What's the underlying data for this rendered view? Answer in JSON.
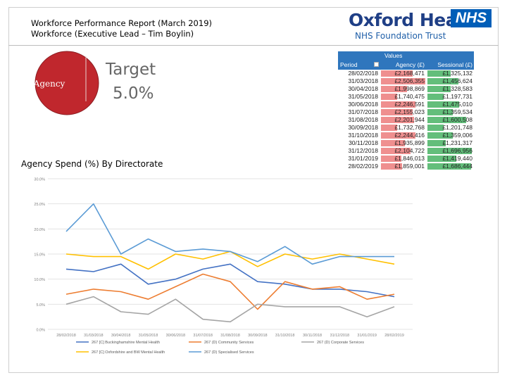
{
  "report": {
    "title_line1": "Workforce Performance Report (March 2019)",
    "title_line2": "Workforce (Executive Lead – Tim Boylin)"
  },
  "logo": {
    "name": "Oxford Health",
    "badge": "NHS",
    "subtitle": "NHS Foundation Trust",
    "badge_color": "#005eb8"
  },
  "indicator": {
    "label": "Agency",
    "target_label": "Target",
    "target_value": "5.0%",
    "color": "#c0272d"
  },
  "table": {
    "values_label": "Values",
    "headers": [
      "Period",
      "Agency (£)",
      "Sessional (£)"
    ],
    "rows": [
      {
        "period": "28/02/2018",
        "agency": "£2,168,471",
        "sessional": "£1,325,132"
      },
      {
        "period": "31/03/2018",
        "agency": "£2,506,355",
        "sessional": "£1,456,624"
      },
      {
        "period": "30/04/2018",
        "agency": "£1,998,869",
        "sessional": "£1,328,583"
      },
      {
        "period": "31/05/2018",
        "agency": "£1,740,475",
        "sessional": "£1,197,731"
      },
      {
        "period": "30/06/2018",
        "agency": "£2,246,591",
        "sessional": "£1,475,010"
      },
      {
        "period": "31/07/2018",
        "agency": "£2,155,023",
        "sessional": "£1,359,534"
      },
      {
        "period": "31/08/2018",
        "agency": "£2,201,944",
        "sessional": "£1,600,508"
      },
      {
        "period": "30/09/2018",
        "agency": "£1,732,768",
        "sessional": "£1,201,748"
      },
      {
        "period": "31/10/2018",
        "agency": "£2,244,416",
        "sessional": "£1,359,006"
      },
      {
        "period": "30/11/2018",
        "agency": "£1,935,899",
        "sessional": "£1,231,317"
      },
      {
        "period": "31/12/2018",
        "agency": "£2,104,722",
        "sessional": "£1,696,956"
      },
      {
        "period": "31/01/2019",
        "agency": "£1,846,013",
        "sessional": "£1,419,440"
      },
      {
        "period": "28/02/2019",
        "agency": "£1,859,001",
        "sessional": "£1,686,444"
      }
    ]
  },
  "chart_title": "Agency Spend (%) By Directorate",
  "chart_data": {
    "type": "line",
    "title": "Agency Spend (%) By Directorate",
    "xlabel": "",
    "ylabel": "",
    "ylim": [
      0,
      30
    ],
    "y_ticks": [
      "0.0%",
      "5.0%",
      "10.0%",
      "15.0%",
      "20.0%",
      "25.0%",
      "30.0%"
    ],
    "categories": [
      "28/02/2018",
      "31/03/2018",
      "30/04/2018",
      "31/05/2018",
      "30/06/2018",
      "31/07/2018",
      "31/08/2018",
      "30/09/2018",
      "31/10/2018",
      "30/11/2018",
      "31/12/2018",
      "31/01/2019",
      "28/02/2019"
    ],
    "series": [
      {
        "name": "267 [C] Buckinghamshire Mental Health",
        "color": "#4472c4",
        "values": [
          12.0,
          11.5,
          13.0,
          9.0,
          10.0,
          12.0,
          13.0,
          9.5,
          9.0,
          8.0,
          8.0,
          7.5,
          6.5
        ]
      },
      {
        "name": "267 (D) Community Services",
        "color": "#ed7d31",
        "values": [
          7.0,
          8.0,
          7.5,
          6.0,
          8.5,
          11.0,
          9.5,
          4.0,
          9.5,
          8.0,
          8.5,
          6.0,
          7.0
        ]
      },
      {
        "name": "267 (D) Corporate Services",
        "color": "#a5a5a5",
        "values": [
          5.0,
          6.5,
          3.5,
          3.0,
          6.0,
          2.0,
          1.5,
          5.0,
          4.5,
          4.5,
          4.5,
          2.5,
          4.5
        ]
      },
      {
        "name": "267 [C] Oxfordshire and BW Mental Health",
        "color": "#ffc000",
        "values": [
          15.0,
          14.5,
          14.5,
          12.0,
          15.0,
          14.0,
          15.5,
          12.5,
          15.0,
          14.0,
          15.0,
          14.0,
          13.0
        ]
      },
      {
        "name": "267 (D) Specialised Services",
        "color": "#5b9bd5",
        "values": [
          19.5,
          25.0,
          15.0,
          18.0,
          15.5,
          16.0,
          15.5,
          13.5,
          16.5,
          13.0,
          14.5,
          14.5,
          14.5
        ]
      }
    ]
  }
}
